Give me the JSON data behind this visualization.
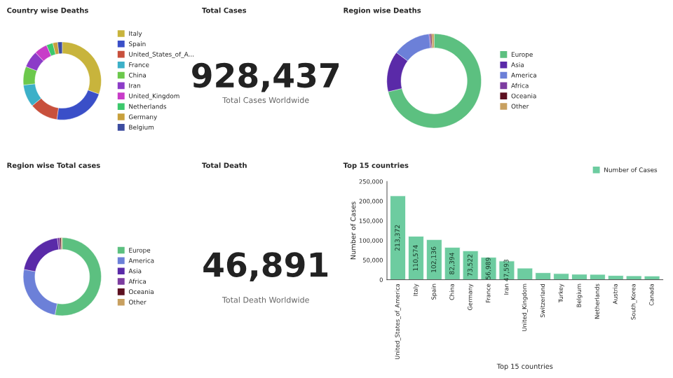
{
  "chart_data": [
    {
      "type": "donut",
      "title": "Country wise Deaths",
      "legend": "right",
      "categories": [
        "Italy",
        "Spain",
        "United_States_of_A...",
        "France",
        "China",
        "Iran",
        "United_Kingdom",
        "Netherlands",
        "Germany",
        "Belgium"
      ],
      "values": [
        30.5,
        21.7,
        11.8,
        9.3,
        7.7,
        7.0,
        5.4,
        2.7,
        2.0,
        1.9
      ],
      "colors": [
        "#c8b43c",
        "#3a4fc8",
        "#c8503c",
        "#3cb0c8",
        "#6cc84c",
        "#8c3cc8",
        "#c83cc8",
        "#3cc86c",
        "#c8a03c",
        "#3c4ca0"
      ]
    },
    {
      "type": "other",
      "title": "Total Cases",
      "annotations": [
        "928,437",
        "Total Cases Worldwide"
      ]
    },
    {
      "type": "donut",
      "title": "Region wise Total cases",
      "legend": "right",
      "categories": [
        "Europe",
        "America",
        "Asia",
        "Africa",
        "Oceania",
        "Other"
      ],
      "values": [
        53,
        25,
        20,
        1,
        0.6,
        0.4
      ],
      "colors": [
        "#5cc080",
        "#6c80d8",
        "#5a2aa8",
        "#7c3ca0",
        "#5c1020",
        "#c8a060"
      ]
    },
    {
      "type": "donut",
      "title": "Region wise Deaths",
      "legend": "right",
      "categories": [
        "Europe",
        "Asia",
        "America",
        "Africa",
        "Oceania",
        "Other"
      ],
      "values": [
        71.3,
        14,
        13,
        0.5,
        0.4,
        0.8
      ],
      "colors": [
        "#5cc080",
        "#5a2aa8",
        "#6c80d8",
        "#7c3ca0",
        "#5c1020",
        "#c8a060"
      ]
    },
    {
      "type": "other",
      "title": "Total Death",
      "annotations": [
        "46,891",
        "Total Death Worldwide"
      ]
    },
    {
      "type": "bar",
      "title": "Top 15 countries",
      "xlabel": "Top 15 countries",
      "ylabel": "Number of Cases",
      "legend": "top right",
      "categories": [
        "United_States_of_America",
        "Italy",
        "Spain",
        "China",
        "Germany",
        "France",
        "Iran",
        "United_Kingdom",
        "Switzerland",
        "Turkey",
        "Belgium",
        "Netherlands",
        "Austria",
        "South_Korea",
        "Canada"
      ],
      "series": [
        {
          "name": "Number of Cases",
          "color": "#6dcca0",
          "values": [
            213372,
            110574,
            102136,
            82394,
            73522,
            56989,
            47593,
            29474,
            17768,
            15679,
            13964,
            13614,
            10711,
            9976,
            9560
          ],
          "value_labels": [
            "213,372",
            "110,574",
            "102,136",
            "82,394",
            "73,522",
            "56,989",
            "47,593",
            null,
            null,
            null,
            null,
            null,
            null,
            null,
            null
          ]
        }
      ],
      "ylim": [
        0,
        250000
      ],
      "yticks": [
        {
          "value": 0,
          "label": "0"
        },
        {
          "value": 50000,
          "label": "50,000"
        },
        {
          "value": 100000,
          "label": "100,000"
        },
        {
          "value": 150000,
          "label": "150,000"
        },
        {
          "value": 200000,
          "label": "200,000"
        },
        {
          "value": 250000,
          "label": "250,000"
        }
      ]
    }
  ]
}
